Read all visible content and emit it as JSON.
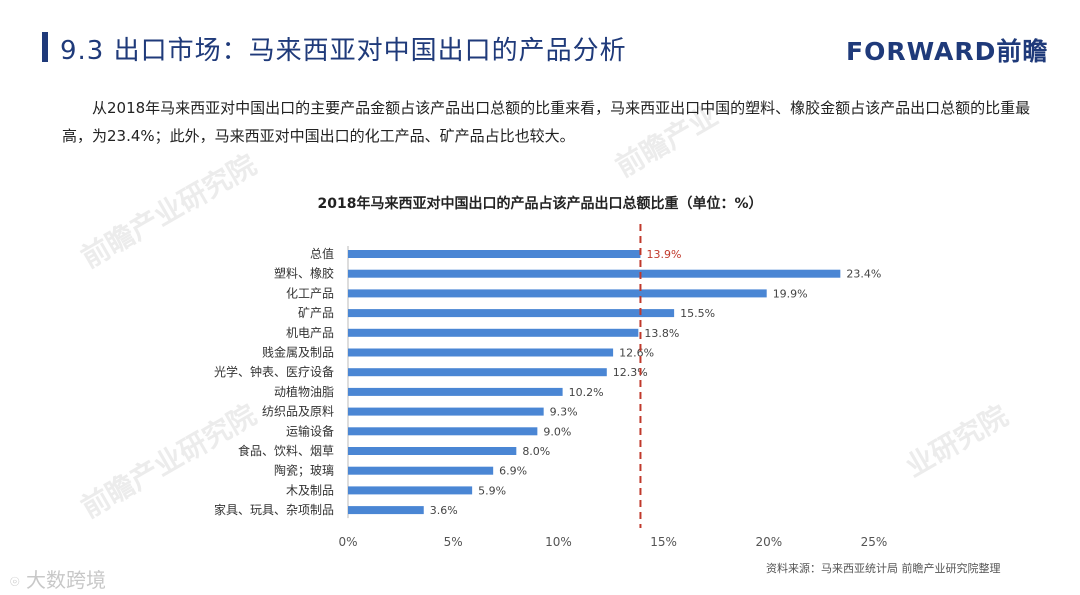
{
  "header": {
    "title": "9.3 出口市场：马来西亚对中国出口的产品分析",
    "logo": "FORWARD前瞻"
  },
  "intro_text": "从2018年马来西亚对中国出口的主要产品金额占该产品出口总额的比重来看，马来西亚出口中国的塑料、橡胶金额占该产品出口总额的比重最高，为23.4%；此外，马来西亚对中国出口的化工产品、矿产品占比也较大。",
  "source": "资料来源：马来西亚统计局  前瞻产业研究院整理",
  "watermark": "大数跨境",
  "background_watermarks": [
    "前瞻产业研究院",
    "前瞻产业",
    "业研究院"
  ],
  "colors": {
    "title": "#1f3a7a",
    "bar": "#4a86d4",
    "highlight": "#c0392b",
    "refline": "#c0392b"
  },
  "chart_data": {
    "type": "bar",
    "orientation": "horizontal",
    "title": "2018年马来西亚对中国出口的产品占该产品出口总额比重（单位：%）",
    "categories": [
      "总值",
      "塑料、橡胶",
      "化工产品",
      "矿产品",
      "机电产品",
      "贱金属及制品",
      "光学、钟表、医疗设备",
      "动植物油脂",
      "纺织品及原料",
      "运输设备",
      "食品、饮料、烟草",
      "陶瓷；玻璃",
      "木及制品",
      "家具、玩具、杂项制品"
    ],
    "values": [
      13.9,
      23.4,
      19.9,
      15.5,
      13.8,
      12.6,
      12.3,
      10.2,
      9.3,
      9.0,
      8.0,
      6.9,
      5.9,
      3.6
    ],
    "value_labels": [
      "13.9%",
      "23.4%",
      "19.9%",
      "15.5%",
      "13.8%",
      "12.6%",
      "12.3%",
      "10.2%",
      "9.3%",
      "9.0%",
      "8.0%",
      "6.9%",
      "5.9%",
      "3.6%"
    ],
    "highlight_index": 0,
    "reference_line": 13.9,
    "xlim": [
      0,
      25
    ],
    "xticks": [
      0,
      5,
      10,
      15,
      20,
      25
    ],
    "xtick_labels": [
      "0%",
      "5%",
      "10%",
      "15%",
      "20%",
      "25%"
    ],
    "xlabel": "",
    "ylabel": "",
    "grid": false,
    "legend": "none"
  }
}
